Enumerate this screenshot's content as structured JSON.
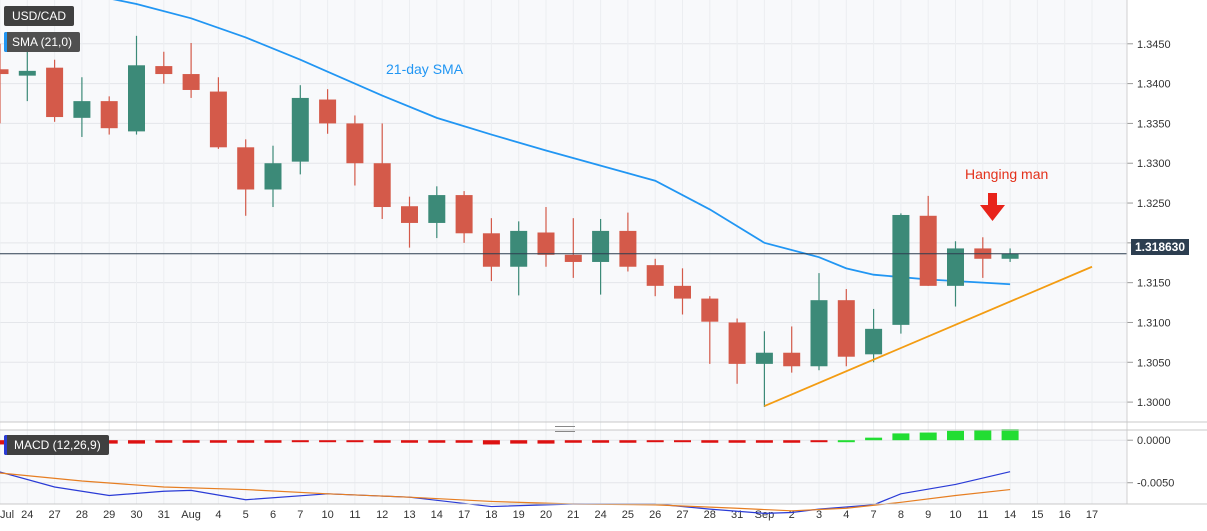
{
  "header": {
    "symbol": "USD/CAD",
    "sma_label": "SMA (21,0)",
    "macd_label": "MACD (12,26,9)"
  },
  "colors": {
    "bull": "#3c8a78",
    "bear": "#d45a4a",
    "sma": "#2196f3",
    "trendline": "#f39c12",
    "macd_line": "#2a3bd6",
    "signal_line": "#e67e22",
    "hist_pos": "#22dd33",
    "hist_neg": "#dd1111",
    "arrow": "#e8231a",
    "annotation_red": "#e3311b",
    "current_price_line": "#2c3e50"
  },
  "chart_data": {
    "type": "candlestick",
    "y_axis_price": {
      "range": [
        1.2975,
        1.3505
      ],
      "ticks": [
        "1.3000",
        "1.3050",
        "1.3100",
        "1.3150",
        "1.3200",
        "1.3250",
        "1.3300",
        "1.3350",
        "1.3400",
        "1.3450"
      ]
    },
    "y_axis_macd": {
      "range": [
        -0.0075,
        0.0012
      ],
      "ticks": [
        "0.0000",
        "-0.0050"
      ]
    },
    "x_labels": [
      "Jul",
      "24",
      "27",
      "28",
      "29",
      "30",
      "31",
      "Aug",
      "4",
      "5",
      "6",
      "7",
      "10",
      "11",
      "12",
      "13",
      "14",
      "17",
      "18",
      "19",
      "20",
      "21",
      "24",
      "25",
      "26",
      "27",
      "28",
      "31",
      "Sep",
      "2",
      "3",
      "4",
      "7",
      "8",
      "9",
      "10",
      "11",
      "14",
      "15",
      "16",
      "17"
    ],
    "candles": [
      {
        "o": 1.3418,
        "h": 1.345,
        "l": 1.335,
        "c": 1.3412
      },
      {
        "o": 1.341,
        "h": 1.3448,
        "l": 1.3378,
        "c": 1.3416
      },
      {
        "o": 1.342,
        "h": 1.343,
        "l": 1.3352,
        "c": 1.3358
      },
      {
        "o": 1.3357,
        "h": 1.3408,
        "l": 1.3333,
        "c": 1.3378
      },
      {
        "o": 1.3378,
        "h": 1.3384,
        "l": 1.3336,
        "c": 1.3344
      },
      {
        "o": 1.334,
        "h": 1.346,
        "l": 1.3336,
        "c": 1.3423
      },
      {
        "o": 1.3422,
        "h": 1.344,
        "l": 1.34,
        "c": 1.3412
      },
      {
        "o": 1.3412,
        "h": 1.3451,
        "l": 1.3382,
        "c": 1.3392
      },
      {
        "o": 1.339,
        "h": 1.3408,
        "l": 1.3318,
        "c": 1.332
      },
      {
        "o": 1.332,
        "h": 1.333,
        "l": 1.3234,
        "c": 1.3267
      },
      {
        "o": 1.3267,
        "h": 1.3322,
        "l": 1.3245,
        "c": 1.33
      },
      {
        "o": 1.3302,
        "h": 1.3398,
        "l": 1.3286,
        "c": 1.3382
      },
      {
        "o": 1.338,
        "h": 1.3393,
        "l": 1.3337,
        "c": 1.335
      },
      {
        "o": 1.335,
        "h": 1.336,
        "l": 1.3272,
        "c": 1.33
      },
      {
        "o": 1.33,
        "h": 1.335,
        "l": 1.323,
        "c": 1.3245
      },
      {
        "o": 1.3246,
        "h": 1.3258,
        "l": 1.3194,
        "c": 1.3225
      },
      {
        "o": 1.3225,
        "h": 1.3271,
        "l": 1.3206,
        "c": 1.326
      },
      {
        "o": 1.326,
        "h": 1.3265,
        "l": 1.32,
        "c": 1.3212
      },
      {
        "o": 1.3212,
        "h": 1.3231,
        "l": 1.3152,
        "c": 1.317
      },
      {
        "o": 1.317,
        "h": 1.3227,
        "l": 1.3134,
        "c": 1.3215
      },
      {
        "o": 1.3213,
        "h": 1.3245,
        "l": 1.317,
        "c": 1.3185
      },
      {
        "o": 1.3185,
        "h": 1.3231,
        "l": 1.3156,
        "c": 1.3176
      },
      {
        "o": 1.3176,
        "h": 1.323,
        "l": 1.3135,
        "c": 1.3215
      },
      {
        "o": 1.3215,
        "h": 1.3238,
        "l": 1.3164,
        "c": 1.317
      },
      {
        "o": 1.3172,
        "h": 1.318,
        "l": 1.3133,
        "c": 1.3146
      },
      {
        "o": 1.3146,
        "h": 1.3168,
        "l": 1.311,
        "c": 1.313
      },
      {
        "o": 1.313,
        "h": 1.3133,
        "l": 1.3048,
        "c": 1.3101
      },
      {
        "o": 1.31,
        "h": 1.3105,
        "l": 1.3023,
        "c": 1.3048
      },
      {
        "o": 1.3048,
        "h": 1.3089,
        "l": 1.2994,
        "c": 1.3062
      },
      {
        "o": 1.3062,
        "h": 1.3095,
        "l": 1.3037,
        "c": 1.3045
      },
      {
        "o": 1.3045,
        "h": 1.3162,
        "l": 1.304,
        "c": 1.3128
      },
      {
        "o": 1.3128,
        "h": 1.3142,
        "l": 1.3045,
        "c": 1.3057
      },
      {
        "o": 1.306,
        "h": 1.3117,
        "l": 1.305,
        "c": 1.3092
      },
      {
        "o": 1.3097,
        "h": 1.3237,
        "l": 1.3086,
        "c": 1.3235
      },
      {
        "o": 1.3234,
        "h": 1.3259,
        "l": 1.3146,
        "c": 1.3146
      },
      {
        "o": 1.3146,
        "h": 1.3202,
        "l": 1.312,
        "c": 1.3193
      },
      {
        "o": 1.3193,
        "h": 1.3207,
        "l": 1.3156,
        "c": 1.318
      },
      {
        "o": 1.318,
        "h": 1.3193,
        "l": 1.3176,
        "c": 1.3186
      }
    ],
    "sma_21": [
      {
        "x": 0,
        "y": 1.3527
      },
      {
        "x": 3,
        "y": 1.3514
      },
      {
        "x": 5,
        "y": 1.35
      },
      {
        "x": 7,
        "y": 1.3482
      },
      {
        "x": 9,
        "y": 1.3458
      },
      {
        "x": 11,
        "y": 1.343
      },
      {
        "x": 12,
        "y": 1.3415
      },
      {
        "x": 14,
        "y": 1.3385
      },
      {
        "x": 16,
        "y": 1.3357
      },
      {
        "x": 18,
        "y": 1.3336
      },
      {
        "x": 20,
        "y": 1.3316
      },
      {
        "x": 22,
        "y": 1.3297
      },
      {
        "x": 24,
        "y": 1.3278
      },
      {
        "x": 26,
        "y": 1.3242
      },
      {
        "x": 28,
        "y": 1.32
      },
      {
        "x": 30,
        "y": 1.3182
      },
      {
        "x": 31,
        "y": 1.3168
      },
      {
        "x": 32,
        "y": 1.316
      },
      {
        "x": 34,
        "y": 1.3154
      },
      {
        "x": 36,
        "y": 1.315
      },
      {
        "x": 37,
        "y": 1.3148
      }
    ],
    "support_trendline": [
      {
        "x": 28,
        "y": 1.2995
      },
      {
        "x": 40,
        "y": 1.317
      }
    ],
    "current_price": 1.31863,
    "current_price_label": "1.318630",
    "annotations": {
      "sma_label": "21-day SMA",
      "hanging_man": "Hanging man"
    },
    "macd": {
      "histogram": [
        -0.0005,
        -0.0005,
        -0.0004,
        -0.0004,
        -0.0004,
        -0.0004,
        -0.0003,
        -0.0003,
        -0.0003,
        -0.0003,
        -0.0003,
        -0.0002,
        -0.0001,
        -0.0001,
        -0.0003,
        -0.0003,
        -0.0003,
        -0.0003,
        -0.0005,
        -0.0004,
        -0.0004,
        -0.0003,
        -0.0003,
        -0.0003,
        -0.0002,
        -0.0002,
        -0.0003,
        -0.0003,
        -0.0003,
        -0.0003,
        -0.0001,
        0.0,
        0.0003,
        0.0008,
        0.0009,
        0.0011,
        0.0012,
        0.0013
      ],
      "macd_line": [
        {
          "x": -0.5,
          "y": -0.0033
        },
        {
          "x": 2,
          "y": -0.0055
        },
        {
          "x": 4,
          "y": -0.0065
        },
        {
          "x": 6,
          "y": -0.006
        },
        {
          "x": 7,
          "y": -0.0059
        },
        {
          "x": 9,
          "y": -0.007
        },
        {
          "x": 12,
          "y": -0.0063
        },
        {
          "x": 15,
          "y": -0.0067
        },
        {
          "x": 18,
          "y": -0.0078
        },
        {
          "x": 21,
          "y": -0.0075
        },
        {
          "x": 24,
          "y": -0.0075
        },
        {
          "x": 26,
          "y": -0.0081
        },
        {
          "x": 28,
          "y": -0.0086
        },
        {
          "x": 29,
          "y": -0.0085
        },
        {
          "x": 30,
          "y": -0.0081
        },
        {
          "x": 32,
          "y": -0.0076
        },
        {
          "x": 33,
          "y": -0.0063
        },
        {
          "x": 35,
          "y": -0.0052
        },
        {
          "x": 37,
          "y": -0.0037
        }
      ],
      "signal_line": [
        {
          "x": -0.5,
          "y": -0.0037
        },
        {
          "x": 3,
          "y": -0.0048
        },
        {
          "x": 6,
          "y": -0.0055
        },
        {
          "x": 9,
          "y": -0.0058
        },
        {
          "x": 12,
          "y": -0.0063
        },
        {
          "x": 15,
          "y": -0.0067
        },
        {
          "x": 18,
          "y": -0.0072
        },
        {
          "x": 21,
          "y": -0.0075
        },
        {
          "x": 24,
          "y": -0.0076
        },
        {
          "x": 27,
          "y": -0.008
        },
        {
          "x": 29,
          "y": -0.0083
        },
        {
          "x": 31,
          "y": -0.008
        },
        {
          "x": 33,
          "y": -0.0073
        },
        {
          "x": 35,
          "y": -0.0065
        },
        {
          "x": 37,
          "y": -0.0058
        }
      ]
    }
  }
}
